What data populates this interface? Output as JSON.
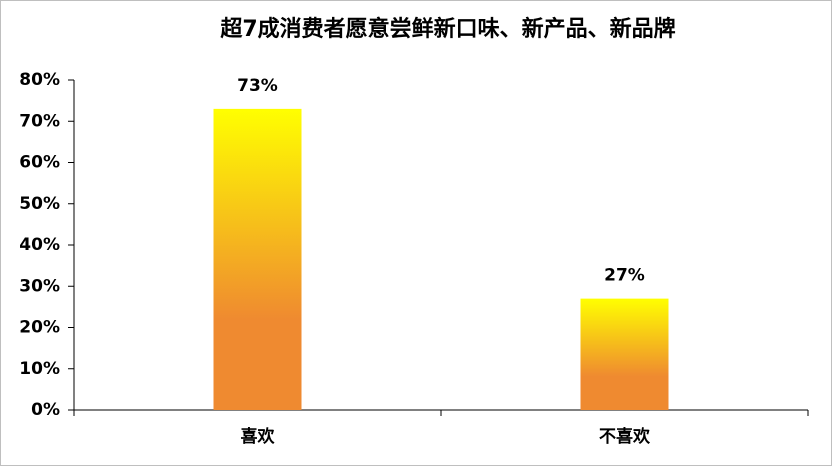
{
  "chart_data": {
    "type": "bar",
    "title": "超7成消费者愿意尝鲜新口味、新产品、新品牌",
    "categories": [
      "喜欢",
      "不喜欢"
    ],
    "values": [
      73,
      27
    ],
    "value_labels": [
      "73%",
      "27%"
    ],
    "gradient": [
      "#ffff00",
      "#ef8a30"
    ],
    "ylim": [
      0,
      80
    ],
    "yticks": [
      {
        "value": 0,
        "label": "0%"
      },
      {
        "value": 10,
        "label": "10%"
      },
      {
        "value": 20,
        "label": "20%"
      },
      {
        "value": 30,
        "label": "30%"
      },
      {
        "value": 40,
        "label": "40%"
      },
      {
        "value": 50,
        "label": "50%"
      },
      {
        "value": 60,
        "label": "60%"
      },
      {
        "value": 70,
        "label": "70%"
      },
      {
        "value": 80,
        "label": "80%"
      }
    ],
    "grid": false
  }
}
